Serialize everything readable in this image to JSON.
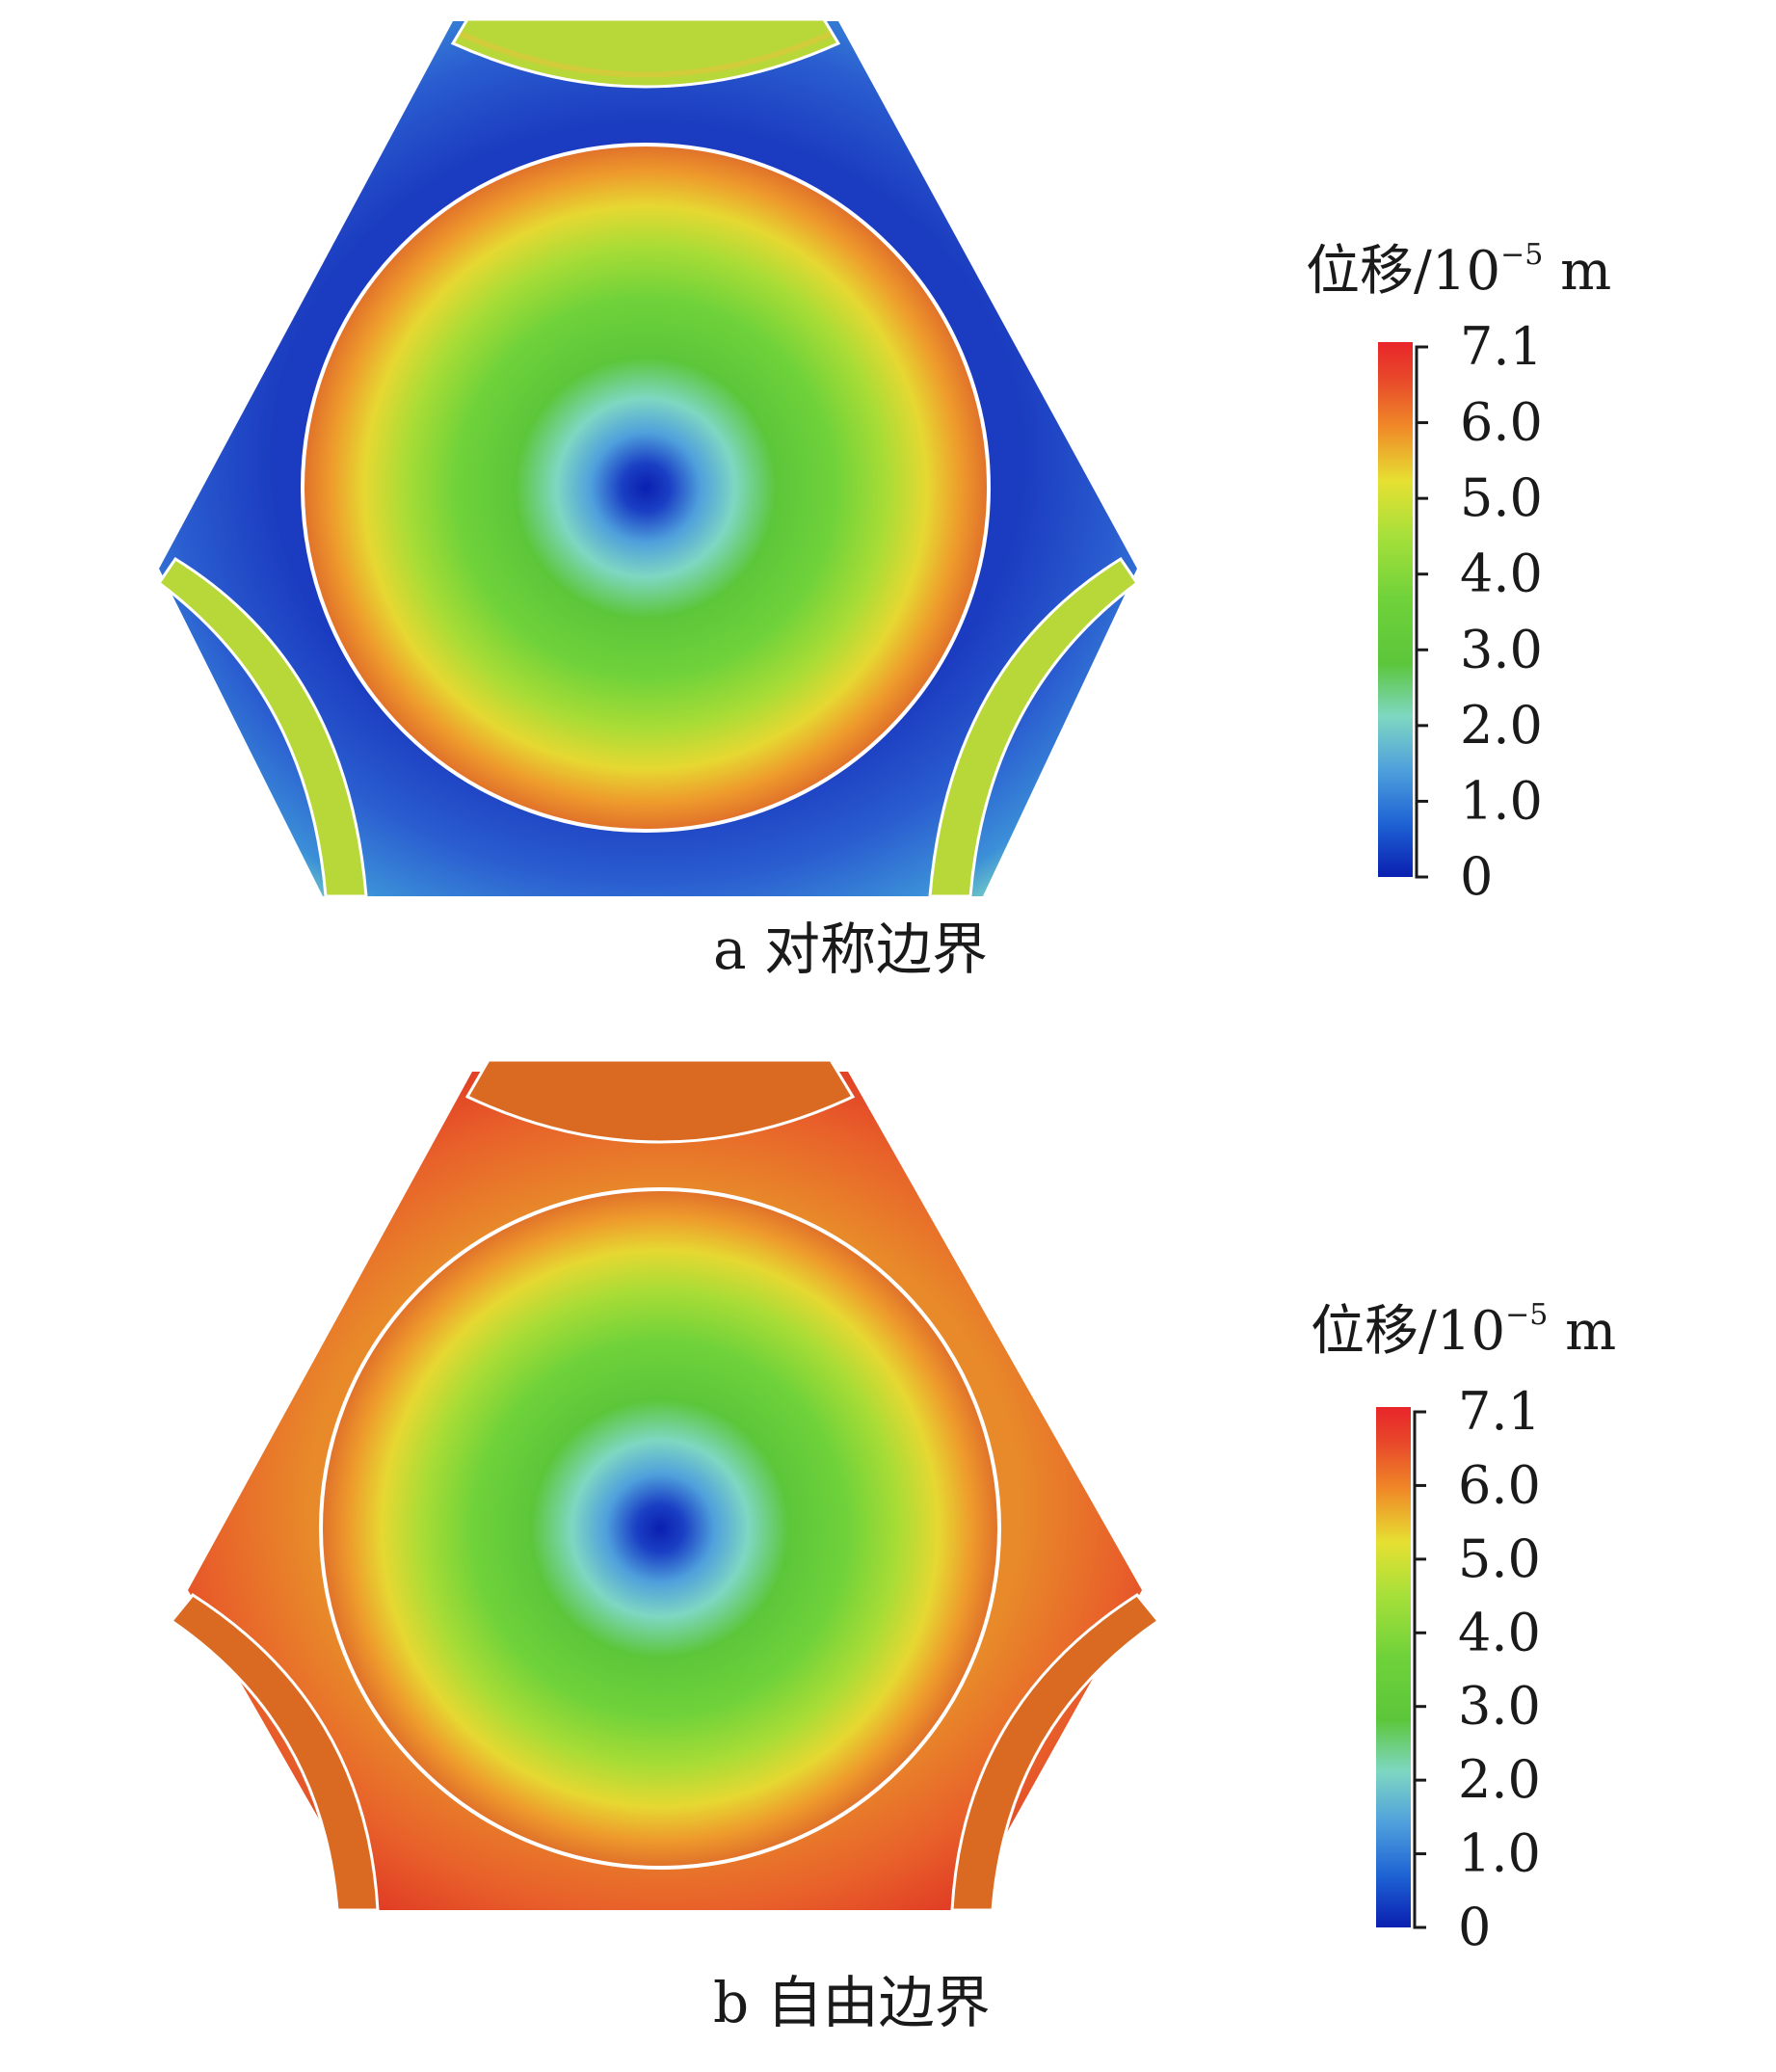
{
  "colorbar_stops": [
    "#0a1fb0",
    "#1e63d4",
    "#4fa0dc",
    "#7ed7c2",
    "#5cc63a",
    "#6fd23a",
    "#a8e03a",
    "#e6e032",
    "#f08a28",
    "#e8492a",
    "#e8252a"
  ],
  "panels": [
    {
      "caption": "a  对称边界",
      "legend_title": "位移/10",
      "legend_exp": "−5",
      "legend_unit": " m",
      "ticks": [
        "7.1",
        "6.0",
        "5.0",
        "4.0",
        "3.0",
        "2.0",
        "1.0",
        "0"
      ],
      "colors": {
        "matrix_inner": "#2a56cc",
        "matrix_outer": "#2a56cc",
        "corner_tint": "#7ed7c2",
        "arc_segment": "#b8d83a",
        "circle_center": "#0a1fb0",
        "circle_edge": "#e0702a"
      }
    },
    {
      "caption": "b  自由边界",
      "legend_title": "位移/10",
      "legend_exp": "−5",
      "legend_unit": " m",
      "ticks": [
        "7.1",
        "6.0",
        "5.0",
        "4.0",
        "3.0",
        "2.0",
        "1.0",
        "0"
      ],
      "colors": {
        "matrix_inner": "#e87a28",
        "matrix_outer": "#e02d20",
        "corner_tint": "#e02d20",
        "arc_segment": "#da6a22",
        "circle_center": "#0a1fb0",
        "circle_edge": "#e0702a"
      }
    }
  ]
}
